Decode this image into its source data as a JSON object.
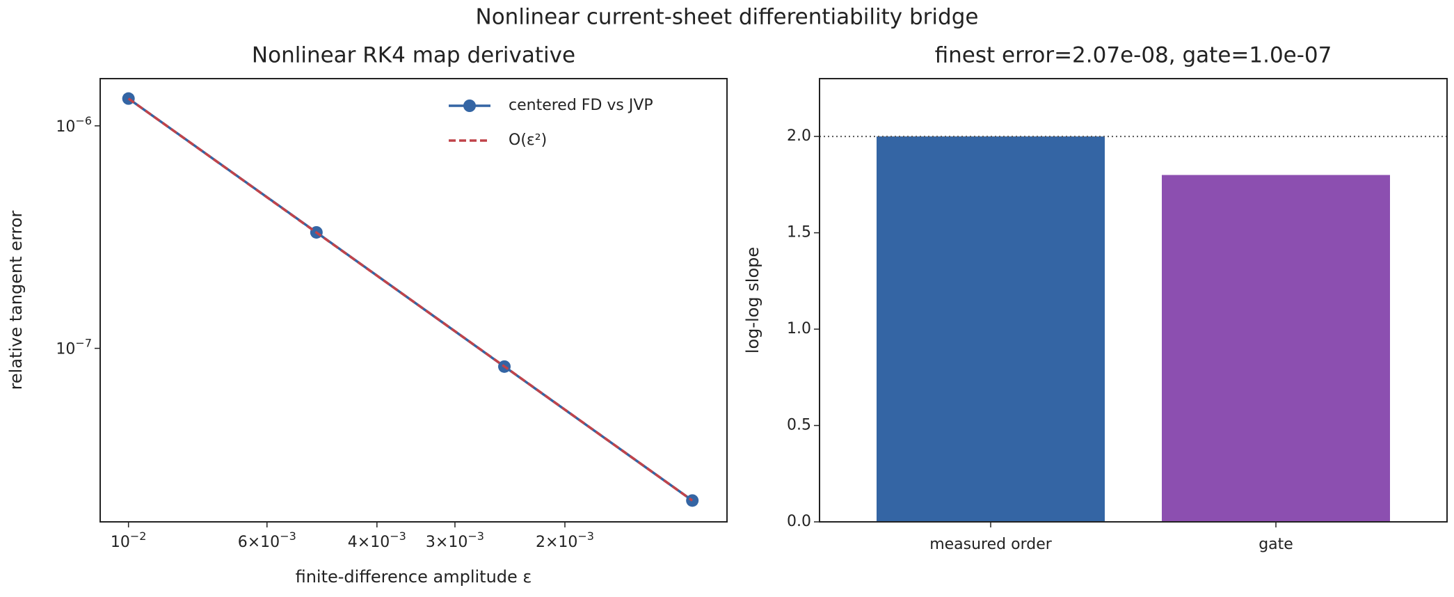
{
  "title": "Nonlinear current-sheet differentiability bridge",
  "chart_data": [
    {
      "type": "line",
      "title": "Nonlinear RK4 map derivative",
      "x_label": "finite-difference amplitude ε",
      "y_label": "relative tangent error",
      "x": [
        0.01,
        0.005,
        0.0025,
        0.00125
      ],
      "xscale": "log",
      "yscale": "log",
      "xlim": [
        0.0111,
        0.0011
      ],
      "ylim": [
        1.63e-06,
        1.66e-08
      ],
      "xticks": [
        {
          "value": 0.01,
          "label": "10−2"
        },
        {
          "value": 0.006,
          "label": "6×10−3"
        },
        {
          "value": 0.004,
          "label": "4×10−3"
        },
        {
          "value": 0.003,
          "label": "3×10−3"
        },
        {
          "value": 0.002,
          "label": "2×10−3"
        }
      ],
      "yticks": [
        {
          "value": 1e-06,
          "label": "10−6"
        },
        {
          "value": 1e-07,
          "label": "10−7"
        }
      ],
      "legend": "upper right",
      "grid": false,
      "series": [
        {
          "name": "centered FD vs JVP",
          "color": "#3465a4",
          "marker": "circle",
          "values": [
            1.326e-06,
            3.32e-07,
            8.28e-08,
            2.07e-08
          ]
        },
        {
          "name": "O(ε²)",
          "color": "#c0434a",
          "dash": true,
          "values": [
            1.326e-06,
            3.315e-07,
            8.29e-08,
            2.07e-08
          ]
        }
      ]
    },
    {
      "type": "bar",
      "title": "finest error=2.07e-08, gate=1.0e-07",
      "y_label": "log-log slope",
      "categories": [
        "measured order",
        "gate"
      ],
      "values": [
        2.0,
        1.8
      ],
      "colors": [
        "#3465a4",
        "#8c4fb0"
      ],
      "ylim": [
        0,
        2.3
      ],
      "yticks": [
        {
          "value": 0,
          "label": "0.0"
        },
        {
          "value": 0.5,
          "label": "0.5"
        },
        {
          "value": 1,
          "label": "1.0"
        },
        {
          "value": 1.5,
          "label": "1.5"
        },
        {
          "value": 2,
          "label": "2.0"
        }
      ],
      "reference_line": 2.0,
      "grid": false
    }
  ]
}
